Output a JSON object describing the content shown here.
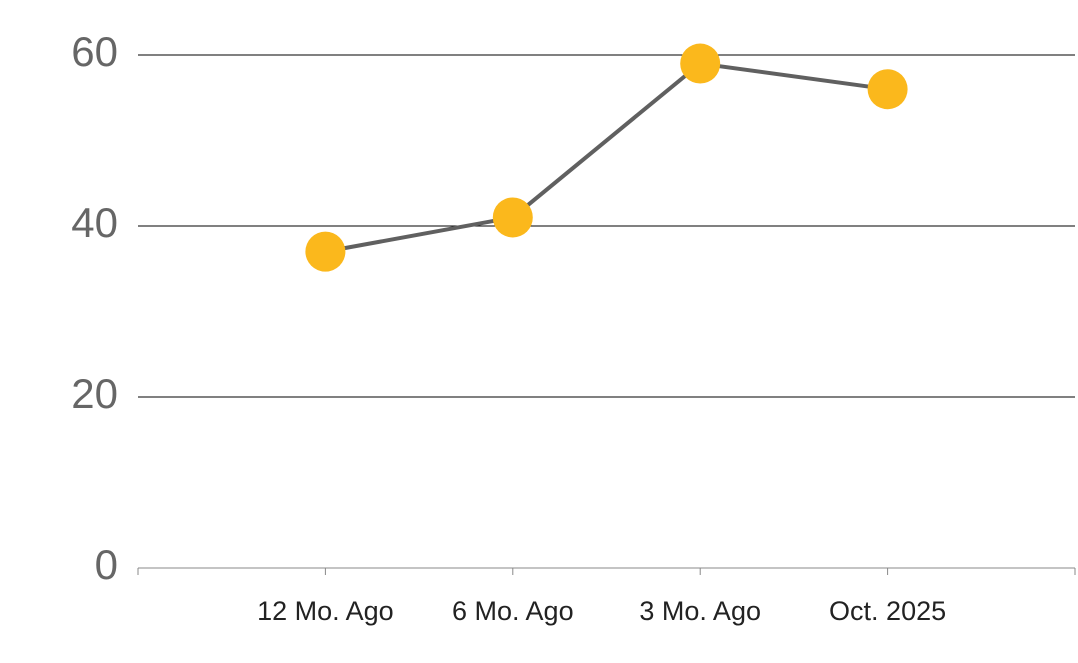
{
  "chart_data": {
    "type": "line",
    "categories": [
      "12 Mo. Ago",
      "6 Mo. Ago",
      "3 Mo. Ago",
      "Oct. 2025"
    ],
    "series": [
      {
        "values": [
          37,
          41,
          59,
          56
        ],
        "color": "#606060",
        "marker_color": "#fbb81c"
      }
    ],
    "ylim": [
      0,
      60
    ],
    "yticks": [
      0,
      20,
      40,
      60
    ],
    "grid": true
  }
}
